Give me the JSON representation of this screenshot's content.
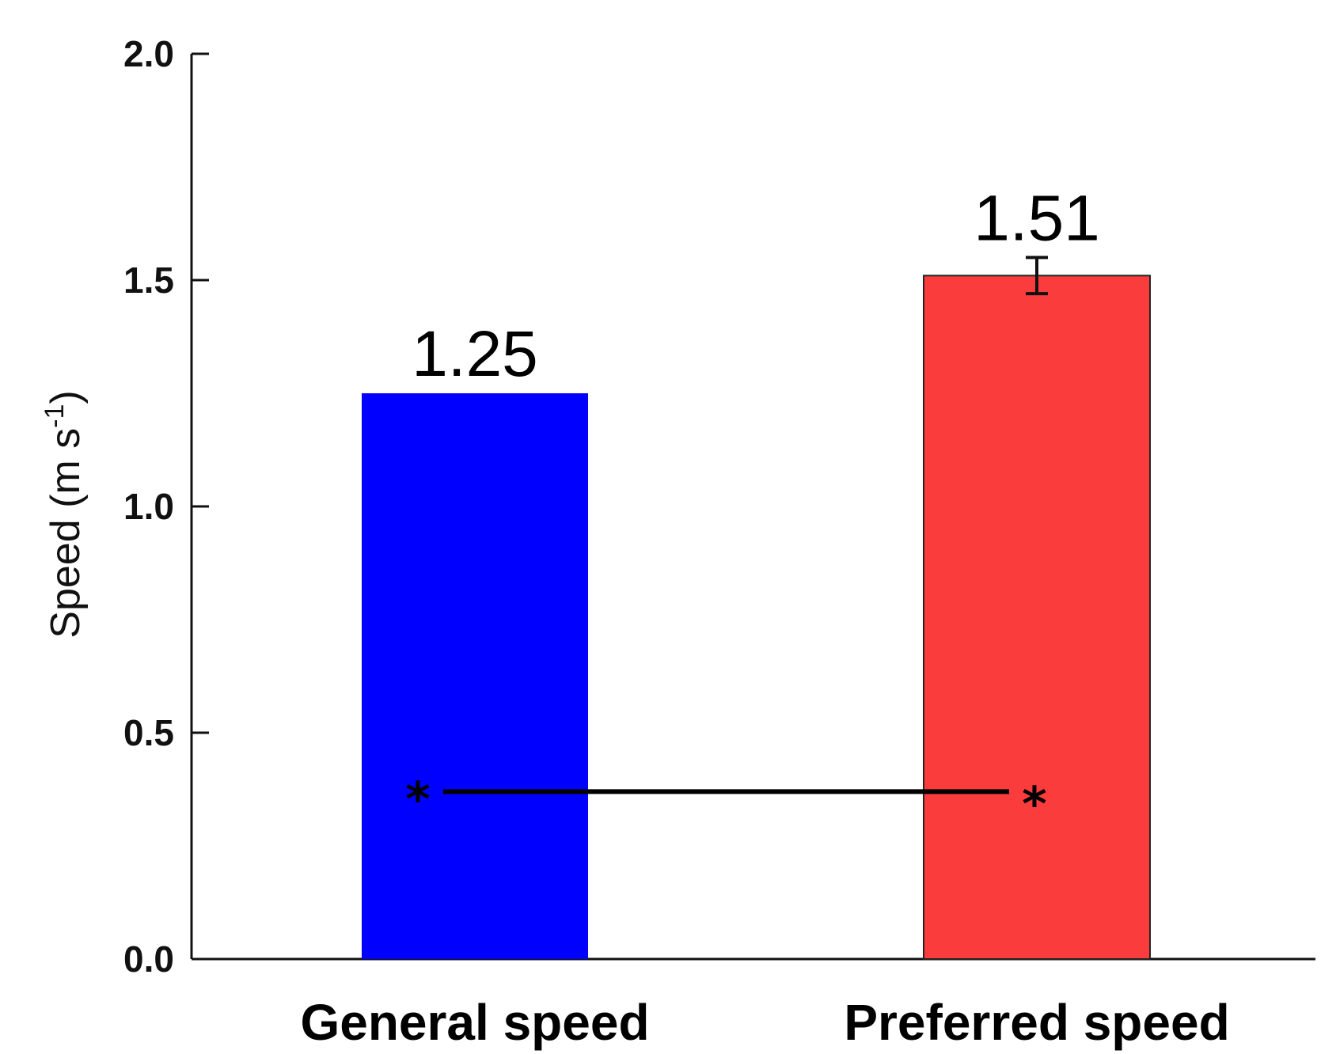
{
  "chart_data": {
    "type": "bar",
    "title": "",
    "xlabel": "",
    "ylabel": {
      "base": "Speed (m s",
      "superscript": "-1",
      "suffix": ")"
    },
    "ylim": [
      0,
      2.0
    ],
    "yticks": [
      "0.0",
      "0.5",
      "1.0",
      "1.5",
      "2.0"
    ],
    "categories": [
      "General speed",
      "Preferred speed"
    ],
    "values": [
      1.25,
      1.51
    ],
    "value_labels": [
      "1.25",
      "1.51"
    ],
    "colors": [
      "#0000ff",
      "#fa3c3c"
    ],
    "error_bars": [
      null,
      0.04
    ],
    "significance": {
      "marker": "*",
      "level": 0.37
    },
    "grid": false,
    "legend": "none"
  }
}
